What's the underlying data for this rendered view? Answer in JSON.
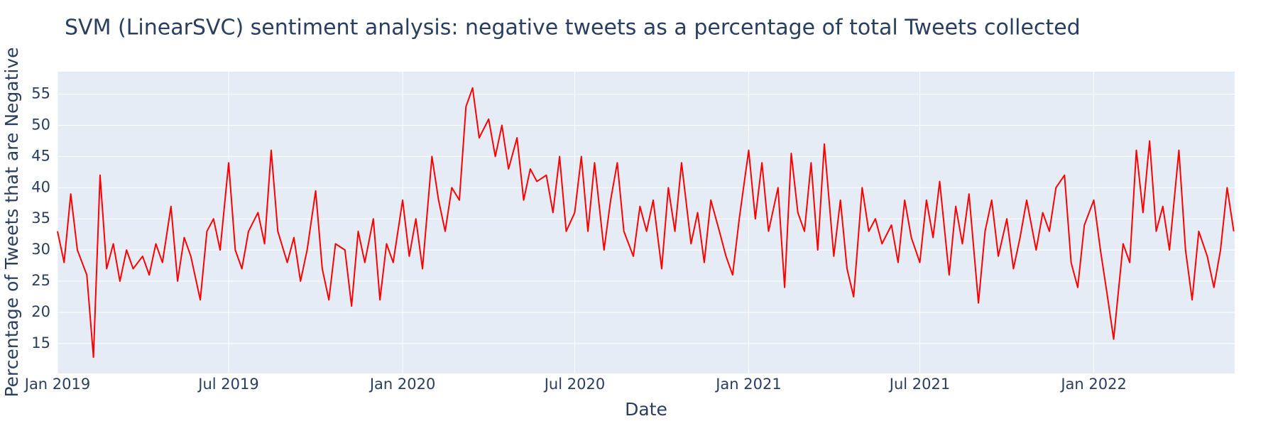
{
  "chart_data": {
    "type": "line",
    "title": "SVM (LinearSVC) sentiment analysis: negative tweets as a percentage of total Tweets collected",
    "x_label": "Date",
    "y_label": "Percentage of Tweets that are Negative",
    "grid": true,
    "xlim": [
      "2019-01-01",
      "2022-05-30"
    ],
    "ylim": [
      10.2,
      58.6
    ],
    "yticks": [
      15,
      20,
      25,
      30,
      35,
      40,
      45,
      50,
      55
    ],
    "xticks": [
      {
        "value": "2019-01-01",
        "label": "Jan 2019"
      },
      {
        "value": "2019-07-01",
        "label": "Jul 2019"
      },
      {
        "value": "2020-01-01",
        "label": "Jan 2020"
      },
      {
        "value": "2020-07-01",
        "label": "Jul 2020"
      },
      {
        "value": "2021-01-01",
        "label": "Jan 2021"
      },
      {
        "value": "2021-07-01",
        "label": "Jul 2021"
      },
      {
        "value": "2022-01-01",
        "label": "Jan 2022"
      }
    ],
    "x": [
      "2019-01-01",
      "2019-01-08",
      "2019-01-15",
      "2019-01-22",
      "2019-02-01",
      "2019-02-08",
      "2019-02-15",
      "2019-02-22",
      "2019-03-01",
      "2019-03-08",
      "2019-03-15",
      "2019-03-22",
      "2019-04-01",
      "2019-04-08",
      "2019-04-15",
      "2019-04-22",
      "2019-05-01",
      "2019-05-08",
      "2019-05-15",
      "2019-05-22",
      "2019-06-01",
      "2019-06-08",
      "2019-06-15",
      "2019-06-22",
      "2019-07-01",
      "2019-07-08",
      "2019-07-15",
      "2019-07-22",
      "2019-08-01",
      "2019-08-08",
      "2019-08-15",
      "2019-08-22",
      "2019-09-01",
      "2019-09-08",
      "2019-09-15",
      "2019-09-22",
      "2019-10-01",
      "2019-10-08",
      "2019-10-15",
      "2019-10-22",
      "2019-11-01",
      "2019-11-08",
      "2019-11-15",
      "2019-11-22",
      "2019-12-01",
      "2019-12-08",
      "2019-12-15",
      "2019-12-22",
      "2020-01-01",
      "2020-01-08",
      "2020-01-15",
      "2020-01-22",
      "2020-02-01",
      "2020-02-08",
      "2020-02-15",
      "2020-02-22",
      "2020-03-01",
      "2020-03-08",
      "2020-03-15",
      "2020-03-22",
      "2020-04-01",
      "2020-04-08",
      "2020-04-15",
      "2020-04-22",
      "2020-05-01",
      "2020-05-08",
      "2020-05-15",
      "2020-05-22",
      "2020-06-01",
      "2020-06-08",
      "2020-06-15",
      "2020-06-22",
      "2020-07-01",
      "2020-07-08",
      "2020-07-15",
      "2020-07-22",
      "2020-08-01",
      "2020-08-08",
      "2020-08-15",
      "2020-08-22",
      "2020-09-01",
      "2020-09-08",
      "2020-09-15",
      "2020-09-22",
      "2020-10-01",
      "2020-10-08",
      "2020-10-15",
      "2020-10-22",
      "2020-11-01",
      "2020-11-08",
      "2020-11-15",
      "2020-11-22",
      "2020-12-01",
      "2020-12-08",
      "2020-12-15",
      "2020-12-22",
      "2021-01-01",
      "2021-01-08",
      "2021-01-15",
      "2021-01-22",
      "2021-02-01",
      "2021-02-08",
      "2021-02-15",
      "2021-02-22",
      "2021-03-01",
      "2021-03-08",
      "2021-03-15",
      "2021-03-22",
      "2021-04-01",
      "2021-04-08",
      "2021-04-15",
      "2021-04-22",
      "2021-05-01",
      "2021-05-08",
      "2021-05-15",
      "2021-05-22",
      "2021-06-01",
      "2021-06-08",
      "2021-06-15",
      "2021-06-22",
      "2021-07-01",
      "2021-07-08",
      "2021-07-15",
      "2021-07-22",
      "2021-08-01",
      "2021-08-08",
      "2021-08-15",
      "2021-08-22",
      "2021-09-01",
      "2021-09-08",
      "2021-09-15",
      "2021-09-22",
      "2021-10-01",
      "2021-10-08",
      "2021-10-15",
      "2021-10-22",
      "2021-11-01",
      "2021-11-08",
      "2021-11-15",
      "2021-11-22",
      "2021-12-01",
      "2021-12-08",
      "2021-12-15",
      "2021-12-22",
      "2022-01-01",
      "2022-01-08",
      "2022-01-15",
      "2022-01-22",
      "2022-02-01",
      "2022-02-08",
      "2022-02-15",
      "2022-02-22",
      "2022-03-01",
      "2022-03-08",
      "2022-03-15",
      "2022-03-22",
      "2022-04-01",
      "2022-04-08",
      "2022-04-15",
      "2022-04-22",
      "2022-05-01",
      "2022-05-08",
      "2022-05-15",
      "2022-05-22",
      "2022-05-29"
    ],
    "series": [
      {
        "color": "#ff0000",
        "values": [
          33,
          28,
          39,
          30,
          26,
          12.8,
          42,
          27,
          31,
          25,
          30,
          27,
          29,
          26,
          31,
          28,
          37,
          25,
          32,
          29,
          22,
          33,
          35,
          30,
          44,
          30,
          27,
          33,
          36,
          31,
          46,
          33,
          28,
          32,
          25,
          30,
          39.5,
          27,
          22,
          31,
          30,
          21,
          33,
          28,
          35,
          22,
          31,
          28,
          38,
          29,
          35,
          27,
          45,
          38,
          33,
          40,
          38,
          53,
          56,
          48,
          51,
          45,
          50,
          43,
          48,
          38,
          43,
          41,
          42,
          36,
          45,
          33,
          36,
          45,
          33,
          44,
          30,
          38,
          44,
          33,
          29,
          37,
          33,
          38,
          27,
          40,
          33,
          44,
          31,
          36,
          28,
          38,
          33,
          29,
          26,
          35,
          46,
          35,
          44,
          33,
          40,
          24,
          45.5,
          36,
          33,
          44,
          30,
          47,
          29,
          38,
          27,
          22.5,
          40,
          33,
          35,
          31,
          34,
          28,
          38,
          32,
          28,
          38,
          32,
          41,
          26,
          37,
          31,
          39,
          21.5,
          33,
          38,
          29,
          35,
          27,
          32,
          38,
          30,
          36,
          33,
          40,
          42,
          28,
          24,
          34,
          38,
          30,
          23,
          15.7,
          31,
          28,
          46,
          36,
          47.5,
          33,
          37,
          30,
          46,
          30,
          22,
          33,
          29,
          24,
          30,
          40,
          33
        ]
      }
    ]
  }
}
